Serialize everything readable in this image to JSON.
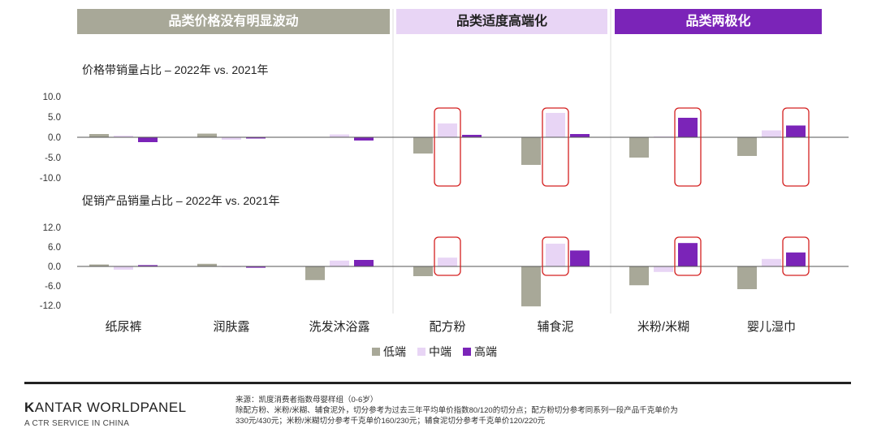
{
  "banners": [
    {
      "label": "品类价格没有明显波动",
      "color": "#a8a898"
    },
    {
      "label": "品类适度高端化",
      "color": "#e8d5f5"
    },
    {
      "label": "品类两极化",
      "color": "#7b24b8"
    }
  ],
  "colors": {
    "low": "#a8a898",
    "mid": "#e8d5f5",
    "high": "#7b24b8",
    "highlight": "#d42020"
  },
  "chart_data": [
    {
      "type": "bar",
      "title": "价格带销量占比 – 2022年 vs. 2021年",
      "categories": [
        "纸尿裤",
        "润肤露",
        "洗发沐浴露",
        "配方粉",
        "辅食泥",
        "米粉/米糊",
        "婴儿湿巾"
      ],
      "yticks": [
        "10.0",
        "5.0",
        "0.0",
        "-5.0",
        "-10.0"
      ],
      "ylim": [
        -10,
        10
      ],
      "series": [
        {
          "name": "低端",
          "values": [
            0.8,
            0.9,
            0.1,
            -4.0,
            -6.8,
            -5.0,
            -4.6
          ]
        },
        {
          "name": "中端",
          "values": [
            0.4,
            -0.6,
            0.7,
            3.4,
            6.0,
            0.2,
            1.7
          ]
        },
        {
          "name": "高端",
          "values": [
            -1.2,
            -0.3,
            -0.8,
            0.6,
            0.8,
            4.8,
            2.9
          ]
        }
      ],
      "highlight_boxes": [
        {
          "category": "配方粉",
          "series": "中端"
        },
        {
          "category": "辅食泥",
          "series": "中端"
        },
        {
          "category": "米粉/米糊",
          "series": "高端"
        },
        {
          "category": "婴儿湿巾",
          "series": "高端"
        }
      ],
      "grid": false
    },
    {
      "type": "bar",
      "title": "促销产品销量占比 – 2022年 vs. 2021年",
      "categories": [
        "纸尿裤",
        "润肤露",
        "洗发沐浴露",
        "配方粉",
        "辅食泥",
        "米粉/米糊",
        "婴儿湿巾"
      ],
      "yticks": [
        "12.0",
        "6.0",
        "0.0",
        "-6.0",
        "-12.0"
      ],
      "ylim": [
        -12,
        12
      ],
      "series": [
        {
          "name": "低端",
          "values": [
            0.6,
            0.8,
            -4.2,
            -3.0,
            -12.3,
            -5.8,
            -7.0
          ]
        },
        {
          "name": "中端",
          "values": [
            -1.0,
            -0.2,
            1.8,
            2.7,
            7.0,
            -1.7,
            2.3
          ]
        },
        {
          "name": "高端",
          "values": [
            0.4,
            -0.4,
            2.0,
            0.0,
            4.9,
            7.2,
            4.3
          ]
        }
      ],
      "highlight_boxes": [
        {
          "category": "配方粉",
          "series": "中端"
        },
        {
          "category": "辅食泥",
          "series": "中端"
        },
        {
          "category": "米粉/米糊",
          "series": "高端"
        },
        {
          "category": "婴儿湿巾",
          "series": "高端"
        }
      ],
      "grid": false
    }
  ],
  "legend": [
    {
      "name": "低端",
      "color": "#a8a898"
    },
    {
      "name": "中端",
      "color": "#e8d5f5"
    },
    {
      "name": "高端",
      "color": "#7b24b8"
    }
  ],
  "footer": {
    "logo_bold": "K",
    "logo_rest": "ANTAR WORLDPANEL",
    "tagline": "A CTR SERVICE IN CHINA",
    "source": "来源：凯度消费者指数母婴样组（0-6岁）",
    "note1": "除配方粉、米粉/米糊、辅食泥外，切分参考为过去三年平均单价指数80/120的切分点；配方粉切分参考同系列一段产品千克单价为",
    "note2": "330元/430元；米粉/米糊切分参考千克单价160/230元；辅食泥切分参考千克单价120/220元"
  }
}
